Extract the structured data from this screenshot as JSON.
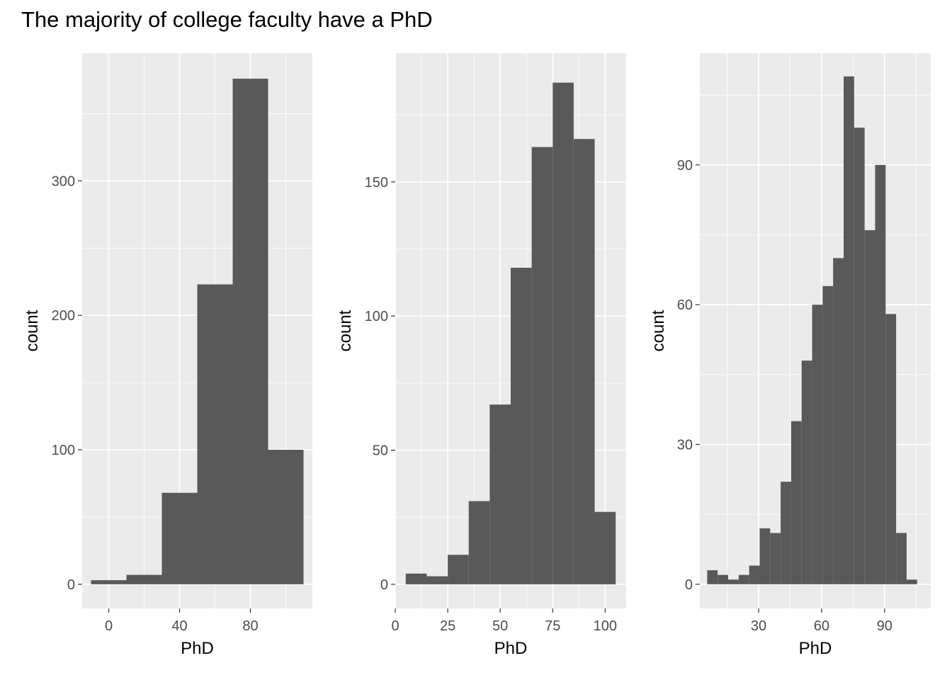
{
  "title": "The majority of college faculty have a PhD",
  "colors": {
    "panel_bg": "#ebebeb",
    "grid_major": "#ffffff",
    "bar_fill": "#595959",
    "tick_text": "#4d4d4d",
    "axis_text": "#000000"
  },
  "chart_data": [
    {
      "type": "bar",
      "xlabel": "PhD",
      "ylabel": "count",
      "grid": true,
      "xlim": [
        -15,
        115
      ],
      "ylim": [
        -18,
        395
      ],
      "xticks": [
        0,
        40,
        80
      ],
      "yticks": [
        0,
        100,
        200,
        300
      ],
      "bins": [
        {
          "x0": -10,
          "x1": 10,
          "count": 3
        },
        {
          "x0": 10,
          "x1": 30,
          "count": 7
        },
        {
          "x0": 30,
          "x1": 50,
          "count": 68
        },
        {
          "x0": 50,
          "x1": 70,
          "count": 223
        },
        {
          "x0": 70,
          "x1": 90,
          "count": 376
        },
        {
          "x0": 90,
          "x1": 110,
          "count": 100
        }
      ]
    },
    {
      "type": "bar",
      "xlabel": "PhD",
      "ylabel": "count",
      "grid": true,
      "xlim": [
        0,
        110
      ],
      "ylim": [
        -9,
        198
      ],
      "xticks": [
        0,
        25,
        50,
        75,
        100
      ],
      "yticks": [
        0,
        50,
        100,
        150
      ],
      "bins": [
        {
          "x0": 5,
          "x1": 15,
          "count": 4
        },
        {
          "x0": 15,
          "x1": 25,
          "count": 3
        },
        {
          "x0": 25,
          "x1": 35,
          "count": 11
        },
        {
          "x0": 35,
          "x1": 45,
          "count": 31
        },
        {
          "x0": 45,
          "x1": 55,
          "count": 67
        },
        {
          "x0": 55,
          "x1": 65,
          "count": 118
        },
        {
          "x0": 65,
          "x1": 75,
          "count": 163
        },
        {
          "x0": 75,
          "x1": 85,
          "count": 187
        },
        {
          "x0": 85,
          "x1": 95,
          "count": 166
        },
        {
          "x0": 95,
          "x1": 105,
          "count": 27
        }
      ]
    },
    {
      "type": "bar",
      "xlabel": "PhD",
      "ylabel": "count",
      "grid": true,
      "xlim": [
        2,
        112
      ],
      "ylim": [
        -5.2,
        114
      ],
      "xticks": [
        30,
        60,
        90
      ],
      "yticks": [
        0,
        30,
        60,
        90
      ],
      "bins": [
        {
          "x0": 5.5,
          "x1": 10.5,
          "count": 3
        },
        {
          "x0": 10.5,
          "x1": 15.5,
          "count": 2
        },
        {
          "x0": 15.5,
          "x1": 20.5,
          "count": 1
        },
        {
          "x0": 20.5,
          "x1": 25.5,
          "count": 2
        },
        {
          "x0": 25.5,
          "x1": 30.5,
          "count": 4
        },
        {
          "x0": 30.5,
          "x1": 35.5,
          "count": 12
        },
        {
          "x0": 35.5,
          "x1": 40.5,
          "count": 11
        },
        {
          "x0": 40.5,
          "x1": 45.5,
          "count": 22
        },
        {
          "x0": 45.5,
          "x1": 50.5,
          "count": 35
        },
        {
          "x0": 50.5,
          "x1": 55.5,
          "count": 48
        },
        {
          "x0": 55.5,
          "x1": 60.5,
          "count": 60
        },
        {
          "x0": 60.5,
          "x1": 65.5,
          "count": 64
        },
        {
          "x0": 65.5,
          "x1": 70.5,
          "count": 70
        },
        {
          "x0": 70.5,
          "x1": 75.5,
          "count": 109
        },
        {
          "x0": 75.5,
          "x1": 80.5,
          "count": 98
        },
        {
          "x0": 80.5,
          "x1": 85.5,
          "count": 76
        },
        {
          "x0": 85.5,
          "x1": 90.5,
          "count": 90
        },
        {
          "x0": 90.5,
          "x1": 95.5,
          "count": 58
        },
        {
          "x0": 95.5,
          "x1": 100.5,
          "count": 11
        },
        {
          "x0": 100.5,
          "x1": 105.5,
          "count": 1
        }
      ]
    }
  ]
}
